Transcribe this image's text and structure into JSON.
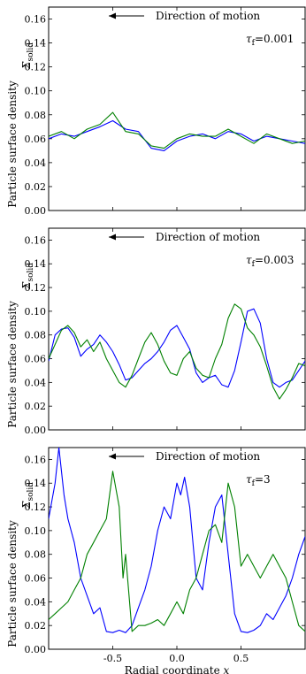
{
  "chart_data": [
    {
      "type": "line",
      "panel": "top",
      "ylabel": "Particle surface density",
      "ylabel_symbol": "Σsolid",
      "ylabel_symbol_main": "Σ",
      "ylabel_symbol_sub": "solid",
      "xlabel": "",
      "annotation": "Direction of motion",
      "tau_label": "τf = 0.001",
      "tau_symbol": "τ",
      "tau_sub": "f",
      "tau_value": "=0.001",
      "xlim": [
        -1.0,
        1.0
      ],
      "ylim": [
        0.0,
        0.17
      ],
      "xticks": [
        "-0.5",
        "0.0",
        "0.5"
      ],
      "yticks": [
        "0.00",
        "0.02",
        "0.04",
        "0.06",
        "0.08",
        "0.10",
        "0.12",
        "0.14",
        "0.16"
      ],
      "series": [
        {
          "color": "#0000ff",
          "x": [
            -1.0,
            -0.9,
            -0.8,
            -0.7,
            -0.6,
            -0.5,
            -0.4,
            -0.3,
            -0.2,
            -0.1,
            0.0,
            0.1,
            0.2,
            0.3,
            0.4,
            0.5,
            0.6,
            0.7,
            0.8,
            0.9,
            1.0
          ],
          "y": [
            0.06,
            0.064,
            0.062,
            0.066,
            0.07,
            0.075,
            0.068,
            0.066,
            0.052,
            0.05,
            0.058,
            0.062,
            0.064,
            0.06,
            0.066,
            0.064,
            0.058,
            0.062,
            0.06,
            0.058,
            0.056
          ]
        },
        {
          "color": "#008000",
          "x": [
            -1.0,
            -0.9,
            -0.8,
            -0.7,
            -0.6,
            -0.5,
            -0.4,
            -0.3,
            -0.2,
            -0.1,
            0.0,
            0.1,
            0.2,
            0.3,
            0.4,
            0.5,
            0.6,
            0.7,
            0.8,
            0.9,
            1.0
          ],
          "y": [
            0.062,
            0.066,
            0.06,
            0.068,
            0.072,
            0.082,
            0.066,
            0.064,
            0.054,
            0.052,
            0.06,
            0.064,
            0.062,
            0.062,
            0.068,
            0.062,
            0.056,
            0.064,
            0.06,
            0.056,
            0.058
          ]
        }
      ]
    },
    {
      "type": "line",
      "panel": "middle",
      "ylabel": "Particle surface density",
      "ylabel_symbol": "Σsolid",
      "ylabel_symbol_main": "Σ",
      "ylabel_symbol_sub": "solid",
      "xlabel": "",
      "annotation": "Direction of motion",
      "tau_label": "τf = 0.003",
      "tau_symbol": "τ",
      "tau_sub": "f",
      "tau_value": "=0.003",
      "xlim": [
        -1.0,
        1.0
      ],
      "ylim": [
        0.0,
        0.17
      ],
      "xticks": [
        "-0.5",
        "0.0",
        "0.5"
      ],
      "yticks": [
        "0.00",
        "0.02",
        "0.04",
        "0.06",
        "0.08",
        "0.10",
        "0.12",
        "0.14",
        "0.16"
      ],
      "series": [
        {
          "color": "#0000ff",
          "x": [
            -1.0,
            -0.95,
            -0.9,
            -0.85,
            -0.8,
            -0.75,
            -0.7,
            -0.65,
            -0.6,
            -0.55,
            -0.5,
            -0.45,
            -0.4,
            -0.35,
            -0.3,
            -0.25,
            -0.2,
            -0.15,
            -0.1,
            -0.05,
            0.0,
            0.05,
            0.1,
            0.15,
            0.2,
            0.25,
            0.3,
            0.35,
            0.4,
            0.45,
            0.5,
            0.55,
            0.6,
            0.65,
            0.7,
            0.75,
            0.8,
            0.85,
            0.9,
            0.95,
            1.0
          ],
          "y": [
            0.058,
            0.08,
            0.085,
            0.086,
            0.078,
            0.062,
            0.068,
            0.072,
            0.08,
            0.074,
            0.066,
            0.055,
            0.042,
            0.044,
            0.05,
            0.056,
            0.06,
            0.066,
            0.074,
            0.084,
            0.088,
            0.078,
            0.068,
            0.048,
            0.04,
            0.044,
            0.046,
            0.038,
            0.036,
            0.05,
            0.074,
            0.1,
            0.102,
            0.09,
            0.06,
            0.04,
            0.036,
            0.04,
            0.042,
            0.05,
            0.058
          ]
        },
        {
          "color": "#008000",
          "x": [
            -1.0,
            -0.95,
            -0.9,
            -0.85,
            -0.8,
            -0.75,
            -0.7,
            -0.65,
            -0.6,
            -0.55,
            -0.5,
            -0.45,
            -0.4,
            -0.35,
            -0.3,
            -0.25,
            -0.2,
            -0.15,
            -0.1,
            -0.05,
            0.0,
            0.05,
            0.1,
            0.15,
            0.2,
            0.25,
            0.3,
            0.35,
            0.4,
            0.45,
            0.5,
            0.55,
            0.6,
            0.65,
            0.7,
            0.75,
            0.8,
            0.85,
            0.9,
            0.95,
            1.0
          ],
          "y": [
            0.06,
            0.072,
            0.084,
            0.088,
            0.082,
            0.07,
            0.076,
            0.066,
            0.074,
            0.06,
            0.05,
            0.04,
            0.036,
            0.046,
            0.06,
            0.074,
            0.082,
            0.072,
            0.058,
            0.048,
            0.046,
            0.06,
            0.066,
            0.052,
            0.046,
            0.044,
            0.06,
            0.072,
            0.094,
            0.106,
            0.102,
            0.086,
            0.08,
            0.07,
            0.054,
            0.036,
            0.026,
            0.034,
            0.044,
            0.056,
            0.054
          ]
        }
      ]
    },
    {
      "type": "line",
      "panel": "bottom",
      "ylabel": "Particle surface density",
      "ylabel_symbol": "Σsolid",
      "ylabel_symbol_main": "Σ",
      "ylabel_symbol_sub": "solid",
      "xlabel": "Radial coordinate x",
      "xlabel_main": "Radial coordinate ",
      "xlabel_var": "x",
      "annotation": "Direction of motion",
      "tau_label": "τf = 3",
      "tau_symbol": "τ",
      "tau_sub": "f",
      "tau_value": "=3",
      "xlim": [
        -1.0,
        1.0
      ],
      "ylim": [
        0.0,
        0.17
      ],
      "xticks": [
        "-0.5",
        "0.0",
        "0.5"
      ],
      "yticks": [
        "0.00",
        "0.02",
        "0.04",
        "0.06",
        "0.08",
        "0.10",
        "0.12",
        "0.14",
        "0.16"
      ],
      "series": [
        {
          "color": "#0000ff",
          "x": [
            -1.0,
            -0.95,
            -0.92,
            -0.88,
            -0.85,
            -0.8,
            -0.75,
            -0.7,
            -0.65,
            -0.6,
            -0.55,
            -0.5,
            -0.45,
            -0.4,
            -0.35,
            -0.3,
            -0.25,
            -0.2,
            -0.15,
            -0.1,
            -0.05,
            0.0,
            0.03,
            0.06,
            0.1,
            0.15,
            0.2,
            0.25,
            0.3,
            0.35,
            0.4,
            0.45,
            0.5,
            0.55,
            0.6,
            0.65,
            0.7,
            0.75,
            0.8,
            0.85,
            0.9,
            0.95,
            1.0
          ],
          "y": [
            0.11,
            0.14,
            0.17,
            0.13,
            0.11,
            0.09,
            0.06,
            0.045,
            0.03,
            0.035,
            0.015,
            0.014,
            0.016,
            0.014,
            0.02,
            0.035,
            0.05,
            0.07,
            0.1,
            0.12,
            0.11,
            0.14,
            0.13,
            0.145,
            0.12,
            0.06,
            0.05,
            0.09,
            0.12,
            0.13,
            0.08,
            0.03,
            0.015,
            0.014,
            0.016,
            0.02,
            0.03,
            0.025,
            0.035,
            0.045,
            0.06,
            0.08,
            0.095
          ]
        },
        {
          "color": "#008000",
          "x": [
            -1.0,
            -0.95,
            -0.9,
            -0.85,
            -0.8,
            -0.75,
            -0.7,
            -0.65,
            -0.6,
            -0.55,
            -0.5,
            -0.45,
            -0.42,
            -0.4,
            -0.35,
            -0.3,
            -0.25,
            -0.2,
            -0.15,
            -0.1,
            -0.05,
            0.0,
            0.05,
            0.1,
            0.15,
            0.2,
            0.25,
            0.3,
            0.35,
            0.4,
            0.45,
            0.5,
            0.55,
            0.6,
            0.65,
            0.7,
            0.75,
            0.8,
            0.85,
            0.9,
            0.95,
            1.0
          ],
          "y": [
            0.025,
            0.03,
            0.035,
            0.04,
            0.05,
            0.06,
            0.08,
            0.09,
            0.1,
            0.11,
            0.15,
            0.12,
            0.06,
            0.08,
            0.015,
            0.02,
            0.02,
            0.022,
            0.025,
            0.02,
            0.03,
            0.04,
            0.03,
            0.05,
            0.06,
            0.08,
            0.1,
            0.105,
            0.09,
            0.14,
            0.12,
            0.07,
            0.08,
            0.07,
            0.06,
            0.07,
            0.08,
            0.07,
            0.06,
            0.04,
            0.02,
            0.015
          ]
        }
      ]
    }
  ]
}
